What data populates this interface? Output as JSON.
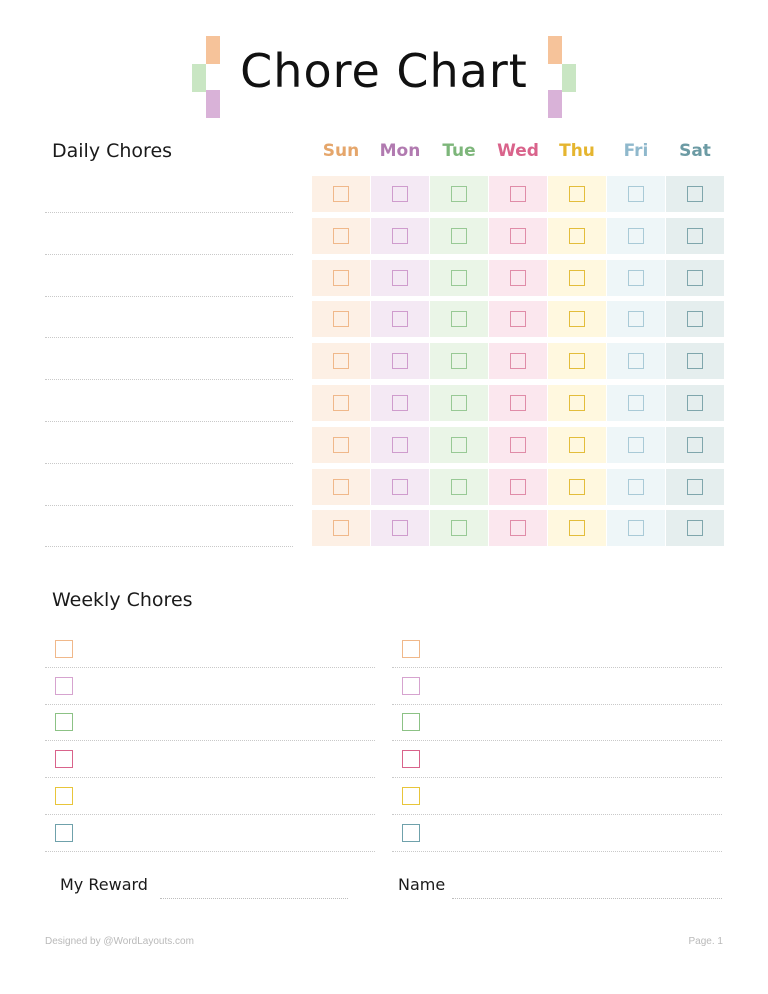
{
  "title": "Chore Chart",
  "daily_label": "Daily Chores",
  "weekly_label": "Weekly Chores",
  "days": [
    {
      "label": "Sun",
      "color": "#e5a66b",
      "bg": "#fdf0e5",
      "box": "#f0b88a"
    },
    {
      "label": "Mon",
      "color": "#b17ab0",
      "bg": "#f4e9f4",
      "box": "#cf9ccd"
    },
    {
      "label": "Tue",
      "color": "#7db67a",
      "bg": "#eaf5e7",
      "box": "#98c995"
    },
    {
      "label": "Wed",
      "color": "#d9638b",
      "bg": "#fbe7ee",
      "box": "#e08ca8"
    },
    {
      "label": "Thu",
      "color": "#e5b52f",
      "bg": "#fff8df",
      "box": "#e3bd3a"
    },
    {
      "label": "Fri",
      "color": "#8fb8cc",
      "bg": "#eef6f8",
      "box": "#a9cad7"
    },
    {
      "label": "Sat",
      "color": "#6c9ba4",
      "bg": "#e5eeee",
      "box": "#7fa6ac"
    }
  ],
  "daily_rows": 9,
  "weekly_colors": [
    "#f0b88a",
    "#d6a3cf",
    "#8cc285",
    "#d9638b",
    "#e8c53a",
    "#6fa1ab"
  ],
  "reward_label": "My Reward",
  "name_label": "Name",
  "footer_left": "Designed by @WordLayouts.com",
  "footer_right": "Page. 1",
  "deco_colors": {
    "orange": "#f6c39a",
    "green": "#c9e6c3",
    "purple": "#d9b2d8"
  }
}
